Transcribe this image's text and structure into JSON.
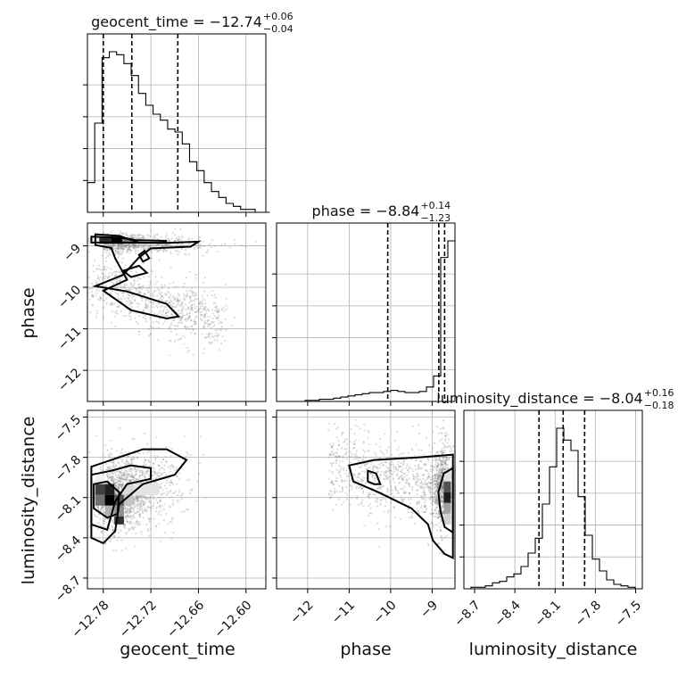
{
  "chart_data": {
    "type": "corner",
    "parameters": [
      "geocent_time",
      "phase",
      "luminosity_distance"
    ],
    "titles": [
      {
        "parameter": "geocent_time",
        "prefix": "geocent_time = ",
        "median": "−12.74",
        "plus": "+0.06",
        "minus": "−0.04"
      },
      {
        "parameter": "phase",
        "prefix": "phase = ",
        "median": "−8.84",
        "plus": "+0.14",
        "minus": "−1.23"
      },
      {
        "parameter": "luminosity_distance",
        "prefix": "luminosity_distance = ",
        "median": "−8.04",
        "plus": "+0.16",
        "minus": "−0.18"
      }
    ],
    "axes": {
      "geocent_time": {
        "range": [
          -12.8,
          -12.575
        ],
        "ticks": [
          -12.78,
          -12.72,
          -12.66,
          -12.6
        ],
        "tick_labels": [
          "−12.78",
          "−12.72",
          "−12.66",
          "−12.60"
        ]
      },
      "phase": {
        "range": [
          -12.75,
          -8.45
        ],
        "ticks": [
          -12,
          -11,
          -10,
          -9
        ],
        "tick_labels": [
          "−12",
          "−11",
          "−10",
          "−9"
        ]
      },
      "luminosity_distance": {
        "range": [
          -8.78,
          -7.45
        ],
        "ticks": [
          -8.7,
          -8.4,
          -8.1,
          -7.8,
          -7.5
        ],
        "tick_labels": [
          "−8.7",
          "−8.4",
          "−8.1",
          "−7.8",
          "−7.5"
        ]
      }
    },
    "quantiles": {
      "geocent_time": [
        -12.78,
        -12.744,
        -12.686
      ],
      "phase": [
        -10.07,
        -8.84,
        -8.7
      ],
      "luminosity_distance": [
        -8.22,
        -8.04,
        -7.88
      ]
    },
    "histograms": {
      "geocent_time": {
        "edges_range": [
          -12.8,
          -12.57
        ],
        "bins": 25,
        "counts": [
          10,
          30,
          52,
          54,
          53,
          50,
          46,
          40,
          36,
          33,
          31,
          28,
          27,
          23,
          17,
          14,
          10,
          7,
          5,
          3,
          2,
          1,
          1,
          0,
          0
        ]
      },
      "phase": {
        "edges_range": [
          -12.75,
          -8.45
        ],
        "bins": 25,
        "counts": [
          0,
          0,
          0,
          0,
          1,
          1,
          2,
          2,
          3,
          4,
          5,
          6,
          7,
          8,
          8,
          9,
          10,
          9,
          8,
          8,
          9,
          13,
          23,
          130,
          145
        ]
      },
      "luminosity_distance": {
        "edges_range": [
          -8.78,
          -7.45
        ],
        "bins": 25,
        "counts": [
          0,
          1,
          1,
          2,
          4,
          5,
          8,
          10,
          15,
          24,
          34,
          57,
          82,
          108,
          100,
          93,
          62,
          36,
          20,
          12,
          6,
          3,
          2,
          1,
          0
        ]
      }
    },
    "grid": true,
    "sample_color": "#808080"
  },
  "labels": {
    "x_geocent_time": "geocent_time",
    "x_phase": "phase",
    "x_luminosity_distance": "luminosity_distance",
    "y_phase": "phase",
    "y_luminosity_distance": "luminosity_distance"
  }
}
